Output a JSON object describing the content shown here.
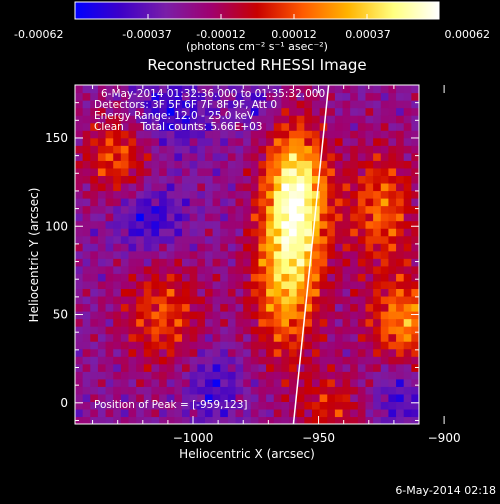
{
  "colorbar": {
    "ticks": [
      "-0.00062",
      "-0.00037",
      "-0.00012",
      "0.00012",
      "0.00037",
      "0.00062"
    ],
    "units": "(photons cm⁻² s⁻¹ asec⁻²)",
    "min": -0.00062,
    "max": 0.00062,
    "colors": [
      "#0000ff",
      "#3d00c8",
      "#7a1ea8",
      "#a0006e",
      "#c80000",
      "#ff5a00",
      "#ffb400",
      "#ffff80",
      "#ffffff"
    ]
  },
  "chart_data": {
    "type": "heatmap",
    "title": "Reconstructed RHESSI Image",
    "xlabel": "Heliocentric X (arcsec)",
    "ylabel": "Heliocentric Y (arcsec)",
    "xlim": [
      -1047,
      -910
    ],
    "ylim": [
      -12,
      180
    ],
    "xticks": [
      -1000,
      -950,
      -900
    ],
    "xtick_labels": [
      "−1000",
      "−950",
      "−900"
    ],
    "yticks": [
      0,
      50,
      100,
      150
    ],
    "ytick_labels": [
      "0",
      "50",
      "100",
      "150"
    ],
    "peak": {
      "x": -959,
      "y": 123
    },
    "annotations": [
      "6-May-2014 01:32:36.000 to 01:35:32.000",
      "Detectors: 3F 5F 6F 7F 8F 9F, Att 0",
      "Energy Range: 12.0 - 25.0 keV",
      "Clean     Total counts: 5.66E+03"
    ],
    "peak_label": "Position of Peak = [-959,123]",
    "limb_line": [
      [
        -960,
        -12
      ],
      [
        -946,
        180
      ]
    ]
  },
  "footer": {
    "timestamp": "6-May-2014 02:18"
  }
}
